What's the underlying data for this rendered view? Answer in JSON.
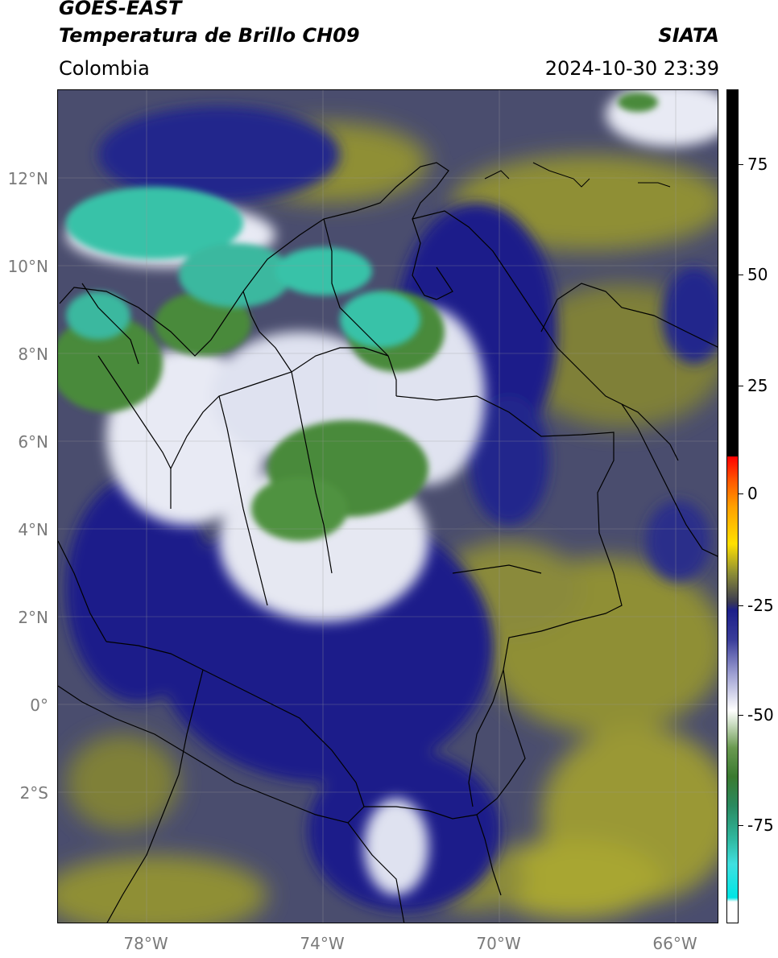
{
  "header": {
    "satellite": "GOES-EAST",
    "product": "Temperatura de Brillo CH09",
    "organization": "SIATA",
    "region": "Colombia",
    "timestamp": "2024-10-30 23:39"
  },
  "map": {
    "lat_range": [
      -5.0,
      14.0
    ],
    "lon_range": [
      -80.0,
      -65.0
    ],
    "lat_ticks": [
      {
        "value": 12,
        "label": "12°N"
      },
      {
        "value": 10,
        "label": "10°N"
      },
      {
        "value": 8,
        "label": "8°N"
      },
      {
        "value": 6,
        "label": "6°N"
      },
      {
        "value": 4,
        "label": "4°N"
      },
      {
        "value": 2,
        "label": "2°N"
      },
      {
        "value": 0,
        "label": "0°"
      },
      {
        "value": -2,
        "label": "2°S"
      }
    ],
    "lon_ticks": [
      {
        "value": -78,
        "label": "78°W"
      },
      {
        "value": -74,
        "label": "74°W"
      },
      {
        "value": -70,
        "label": "70°W"
      },
      {
        "value": -66,
        "label": "66°W"
      }
    ],
    "gridlines": true,
    "colors": {
      "background": "#4a4d6e",
      "olive": "#8f8f34",
      "olive_light": "#a8a630",
      "navy": "#1c1f8a",
      "white_cloud": "#e8eaf4",
      "green": "#4a8a3a",
      "teal": "#38c2a8",
      "border": "#000000"
    }
  },
  "colorbar": {
    "range": [
      -95,
      90
    ],
    "ticks": [
      {
        "value": 75,
        "label": "75"
      },
      {
        "value": 50,
        "label": "50"
      },
      {
        "value": 25,
        "label": "25"
      },
      {
        "value": 0,
        "label": "0"
      },
      {
        "value": -25,
        "label": "-25"
      },
      {
        "value": -50,
        "label": "-50"
      },
      {
        "value": -75,
        "label": "-75"
      }
    ]
  }
}
